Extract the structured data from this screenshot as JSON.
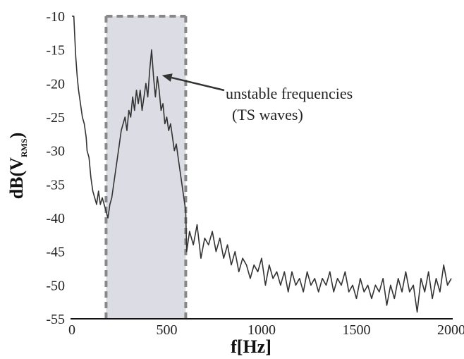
{
  "chart_data": {
    "type": "line",
    "title": "",
    "xlabel": "f[Hz]",
    "ylabel": {
      "main": "dB(V",
      "sub": "RMS",
      "close": ")"
    },
    "xlim": [
      0,
      2000
    ],
    "ylim": [
      -55,
      -10
    ],
    "xticks": [
      "0",
      "500",
      "1000",
      "1500",
      "2000"
    ],
    "yticks": [
      "-10",
      "-15",
      "-20",
      "-25",
      "-30",
      "-35",
      "-40",
      "-45",
      "-50",
      "-55"
    ],
    "xtick_values": [
      0,
      500,
      1000,
      1500,
      2000
    ],
    "ytick_values": [
      -10,
      -15,
      -20,
      -25,
      -30,
      -35,
      -40,
      -45,
      -50,
      -55
    ],
    "grid": false,
    "shaded_band": {
      "x": [
        180,
        600
      ],
      "color": "#dcdce4",
      "border_color": "#888888",
      "border_style": "dashed"
    },
    "annotation": {
      "lines": [
        "unstable frequencies",
        "(TS waves)"
      ],
      "arrow_target": {
        "x": 430,
        "y": -19
      }
    },
    "line_color": "#333333",
    "series": [
      {
        "values": [
          [
            0,
            -10
          ],
          [
            5,
            -10
          ],
          [
            10,
            -10
          ],
          [
            15,
            -13
          ],
          [
            20,
            -16
          ],
          [
            28,
            -19
          ],
          [
            35,
            -21
          ],
          [
            45,
            -23
          ],
          [
            55,
            -25
          ],
          [
            65,
            -26
          ],
          [
            75,
            -28
          ],
          [
            80,
            -30
          ],
          [
            90,
            -31
          ],
          [
            100,
            -34
          ],
          [
            110,
            -36
          ],
          [
            120,
            -37
          ],
          [
            130,
            -38
          ],
          [
            140,
            -36
          ],
          [
            150,
            -38
          ],
          [
            160,
            -37
          ],
          [
            170,
            -38
          ],
          [
            180,
            -39
          ],
          [
            190,
            -40
          ],
          [
            200,
            -38
          ],
          [
            210,
            -37
          ],
          [
            220,
            -35
          ],
          [
            230,
            -33
          ],
          [
            240,
            -31
          ],
          [
            250,
            -29
          ],
          [
            260,
            -27
          ],
          [
            270,
            -26
          ],
          [
            280,
            -25
          ],
          [
            290,
            -27
          ],
          [
            300,
            -24
          ],
          [
            310,
            -25
          ],
          [
            320,
            -22
          ],
          [
            330,
            -24
          ],
          [
            340,
            -21
          ],
          [
            350,
            -23
          ],
          [
            360,
            -21
          ],
          [
            370,
            -24
          ],
          [
            380,
            -22
          ],
          [
            390,
            -20
          ],
          [
            400,
            -22
          ],
          [
            410,
            -18
          ],
          [
            420,
            -15
          ],
          [
            430,
            -19
          ],
          [
            440,
            -22
          ],
          [
            450,
            -19
          ],
          [
            460,
            -21
          ],
          [
            470,
            -24
          ],
          [
            480,
            -23
          ],
          [
            490,
            -26
          ],
          [
            500,
            -25
          ],
          [
            510,
            -27
          ],
          [
            520,
            -26
          ],
          [
            530,
            -28
          ],
          [
            540,
            -30
          ],
          [
            550,
            -29
          ],
          [
            560,
            -31
          ],
          [
            570,
            -33
          ],
          [
            580,
            -35
          ],
          [
            590,
            -37
          ],
          [
            600,
            -39
          ],
          [
            605,
            -45
          ],
          [
            620,
            -42
          ],
          [
            640,
            -44
          ],
          [
            660,
            -41
          ],
          [
            680,
            -46
          ],
          [
            700,
            -43
          ],
          [
            720,
            -44
          ],
          [
            740,
            -42
          ],
          [
            760,
            -45
          ],
          [
            780,
            -43
          ],
          [
            800,
            -46
          ],
          [
            820,
            -44
          ],
          [
            840,
            -47
          ],
          [
            860,
            -45
          ],
          [
            880,
            -48
          ],
          [
            900,
            -46
          ],
          [
            920,
            -47
          ],
          [
            940,
            -49
          ],
          [
            960,
            -47
          ],
          [
            980,
            -48
          ],
          [
            1000,
            -46
          ],
          [
            1020,
            -50
          ],
          [
            1040,
            -47
          ],
          [
            1060,
            -49
          ],
          [
            1080,
            -48
          ],
          [
            1100,
            -50
          ],
          [
            1120,
            -48
          ],
          [
            1140,
            -51
          ],
          [
            1160,
            -48
          ],
          [
            1180,
            -50
          ],
          [
            1200,
            -49
          ],
          [
            1220,
            -51
          ],
          [
            1240,
            -48
          ],
          [
            1260,
            -50
          ],
          [
            1280,
            -49
          ],
          [
            1300,
            -51
          ],
          [
            1320,
            -49
          ],
          [
            1340,
            -50
          ],
          [
            1360,
            -48
          ],
          [
            1380,
            -51
          ],
          [
            1400,
            -49
          ],
          [
            1420,
            -50
          ],
          [
            1440,
            -48
          ],
          [
            1460,
            -51
          ],
          [
            1480,
            -50
          ],
          [
            1500,
            -52
          ],
          [
            1520,
            -49
          ],
          [
            1540,
            -51
          ],
          [
            1560,
            -50
          ],
          [
            1580,
            -52
          ],
          [
            1600,
            -50
          ],
          [
            1620,
            -51
          ],
          [
            1640,
            -49
          ],
          [
            1660,
            -53
          ],
          [
            1680,
            -50
          ],
          [
            1700,
            -52
          ],
          [
            1720,
            -49
          ],
          [
            1740,
            -51
          ],
          [
            1760,
            -48
          ],
          [
            1780,
            -51
          ],
          [
            1800,
            -50
          ],
          [
            1820,
            -54
          ],
          [
            1840,
            -49
          ],
          [
            1860,
            -51
          ],
          [
            1880,
            -48
          ],
          [
            1900,
            -52
          ],
          [
            1920,
            -49
          ],
          [
            1940,
            -51
          ],
          [
            1960,
            -47
          ],
          [
            1980,
            -50
          ],
          [
            2000,
            -49
          ]
        ]
      }
    ]
  }
}
